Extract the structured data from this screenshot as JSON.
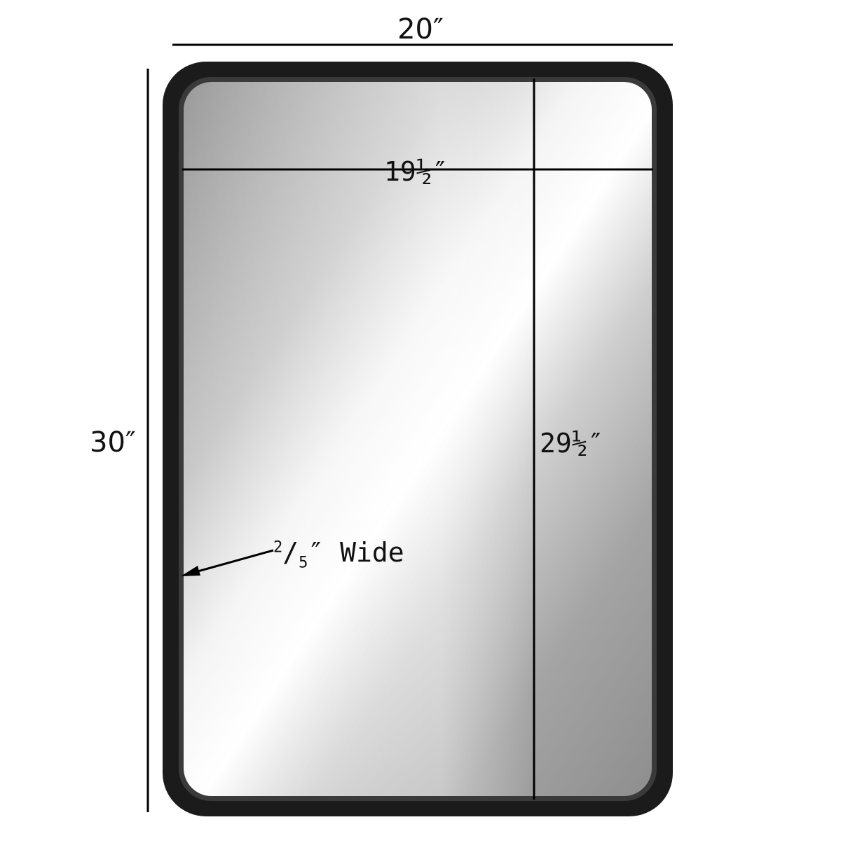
{
  "diagram": {
    "overall_width": "20″",
    "overall_height": "30″",
    "glass_width": "19½″",
    "glass_height": "29½″",
    "frame_width_numerator": "2",
    "frame_width_denominator": "5",
    "frame_width_suffix": "″ Wide"
  },
  "colors": {
    "frame": "#1b1b1b",
    "dimension_line": "#000000",
    "glass_light": "#f7f7f7",
    "glass_dark": "#8c8c8c",
    "background": "#ffffff"
  }
}
